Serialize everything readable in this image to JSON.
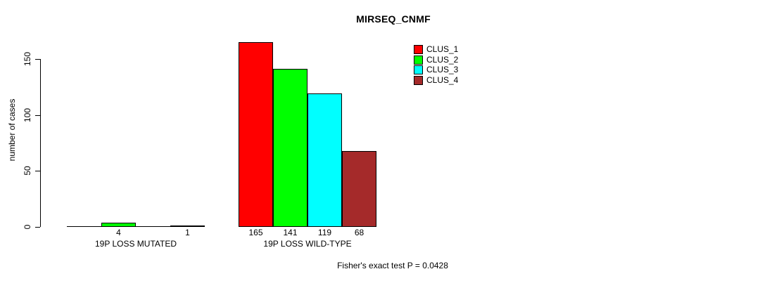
{
  "chart_data": {
    "type": "bar",
    "title": "MIRSEQ_CNMF",
    "ylabel": "number of cases",
    "xlabel": "",
    "ylim": [
      0,
      150
    ],
    "yticks": [
      0,
      50,
      100,
      150
    ],
    "grid": false,
    "legend_position": "top-right",
    "series": [
      {
        "name": "CLUS_1",
        "color": "#FF0000"
      },
      {
        "name": "CLUS_2",
        "color": "#00FF00"
      },
      {
        "name": "CLUS_3",
        "color": "#00FFFF"
      },
      {
        "name": "CLUS_4",
        "color": "#A52A2A"
      }
    ],
    "groups": [
      {
        "label": "19P LOSS MUTATED",
        "values": [
          0,
          4,
          0,
          1
        ],
        "bar_labels": [
          "",
          "4",
          "",
          "1"
        ]
      },
      {
        "label": "19P LOSS WILD-TYPE",
        "values": [
          165,
          141,
          119,
          68
        ],
        "bar_labels": [
          "165",
          "141",
          "119",
          "68"
        ]
      }
    ],
    "annotation": "Fisher's exact test P = 0.0428"
  },
  "colors": {
    "foreground": "#000000",
    "background": "#FFFFFF"
  }
}
